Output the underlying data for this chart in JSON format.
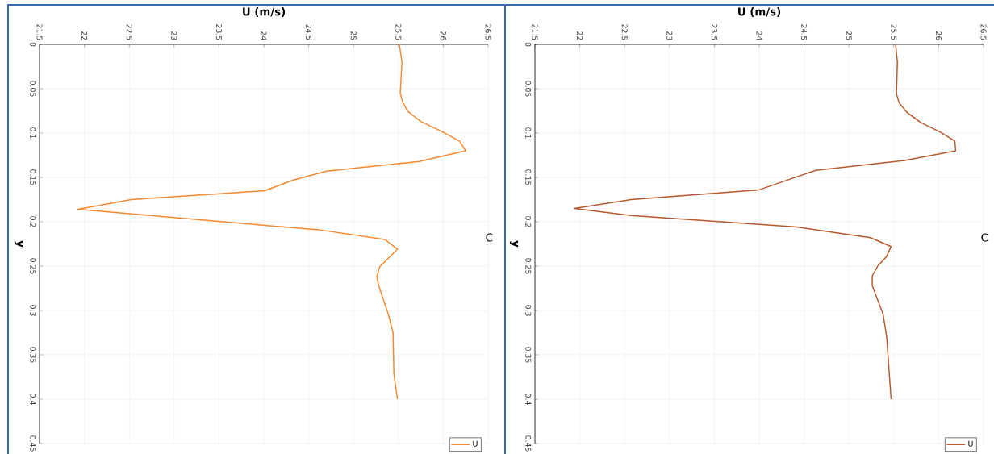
{
  "chart_data": [
    {
      "type": "line",
      "title": "C",
      "xlabel": "U (m/s)",
      "ylabel": "y",
      "xlim": [
        21.5,
        26.5
      ],
      "xticks": [
        21.5,
        22,
        22.5,
        23,
        23.5,
        24,
        24.5,
        25,
        25.5,
        26,
        26.5
      ],
      "ylim": [
        0.45,
        0
      ],
      "yticks": [
        0,
        0.05,
        0.1,
        0.15,
        0.2,
        0.25,
        0.3,
        0.35,
        0.4,
        0.45
      ],
      "grid": true,
      "legend": "bottom right",
      "series": [
        {
          "name": "U",
          "color": "#f5892f",
          "x": [
            25.51,
            25.54,
            25.52,
            25.55,
            25.61,
            25.75,
            25.98,
            26.18,
            26.25,
            25.73,
            24.7,
            24.33,
            24.01,
            22.52,
            21.93,
            24.01,
            24.61,
            25.35,
            25.49,
            25.29,
            25.26,
            25.28,
            25.39,
            25.44,
            25.45,
            25.49
          ],
          "values": [
            0,
            0.02,
            0.055,
            0.066,
            0.076,
            0.087,
            0.098,
            0.109,
            0.12,
            0.132,
            0.143,
            0.153,
            0.165,
            0.175,
            0.186,
            0.204,
            0.209,
            0.22,
            0.231,
            0.251,
            0.262,
            0.272,
            0.305,
            0.325,
            0.372,
            0.4
          ]
        }
      ]
    },
    {
      "type": "line",
      "title": "C",
      "xlabel": "U (m/s)",
      "ylabel": "y",
      "xlim": [
        21.5,
        26.5
      ],
      "xticks": [
        21.5,
        22,
        22.5,
        23,
        23.5,
        24,
        24.5,
        25,
        25.5,
        26,
        26.5
      ],
      "ylim": [
        0.45,
        0
      ],
      "yticks": [
        0,
        0.05,
        0.1,
        0.15,
        0.2,
        0.25,
        0.3,
        0.35,
        0.4,
        0.45
      ],
      "grid": true,
      "legend": "bottom right",
      "series": [
        {
          "name": "U",
          "color": "#b5582a",
          "x": [
            25.52,
            25.54,
            25.53,
            25.56,
            25.65,
            25.8,
            26.02,
            26.18,
            26.19,
            25.62,
            24.63,
            24.37,
            24.0,
            22.57,
            21.94,
            22.57,
            22.99,
            24.42,
            25.24,
            25.47,
            25.42,
            25.32,
            25.26,
            25.26,
            25.38,
            25.42,
            25.47
          ],
          "values": [
            0,
            0.02,
            0.056,
            0.066,
            0.077,
            0.088,
            0.099,
            0.109,
            0.12,
            0.131,
            0.142,
            0.151,
            0.164,
            0.175,
            0.185,
            0.193,
            0.196,
            0.206,
            0.218,
            0.228,
            0.239,
            0.25,
            0.261,
            0.272,
            0.304,
            0.329,
            0.4
          ]
        }
      ]
    }
  ]
}
